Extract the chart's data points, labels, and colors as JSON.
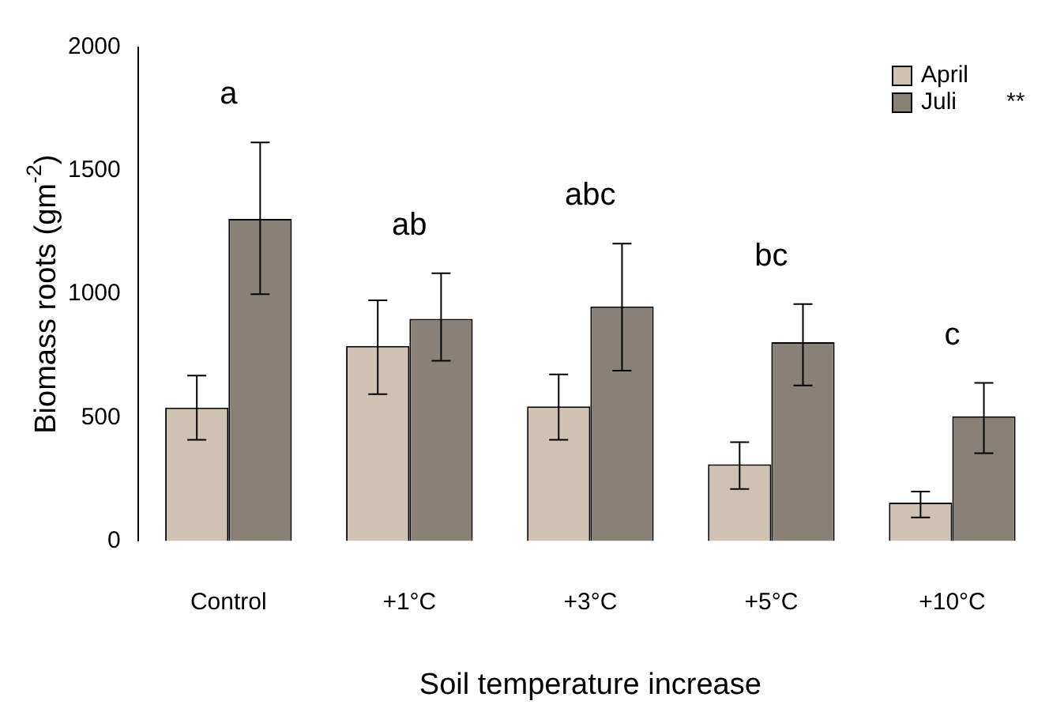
{
  "chart_data": {
    "type": "bar",
    "xlabel": "Soil temperature increase",
    "ylabel": "Biomass roots (gm$^{-2}$)",
    "categories": [
      "Control",
      "+1°C",
      "+3°C",
      "+5°C",
      "+10°C"
    ],
    "series": [
      {
        "name": "April",
        "color": "#cfc2b2",
        "values": [
          540,
          790,
          545,
          310,
          155
        ],
        "errors": [
          [
            410,
            670
          ],
          [
            595,
            975
          ],
          [
            410,
            675
          ],
          [
            210,
            400
          ],
          [
            95,
            200
          ]
        ]
      },
      {
        "name": "Juli",
        "color": "#898078",
        "values": [
          1305,
          900,
          950,
          805,
          505
        ],
        "errors": [
          [
            1000,
            1615
          ],
          [
            730,
            1085
          ],
          [
            690,
            1205
          ],
          [
            630,
            960
          ],
          [
            355,
            640
          ]
        ]
      }
    ],
    "ylim": [
      0,
      2000
    ],
    "yticks": [
      0,
      500,
      1000,
      1500,
      2000
    ],
    "grid": false,
    "legend": "top right",
    "annotations": [
      "a",
      "ab",
      "abc",
      "bc",
      "c",
      "**"
    ]
  }
}
